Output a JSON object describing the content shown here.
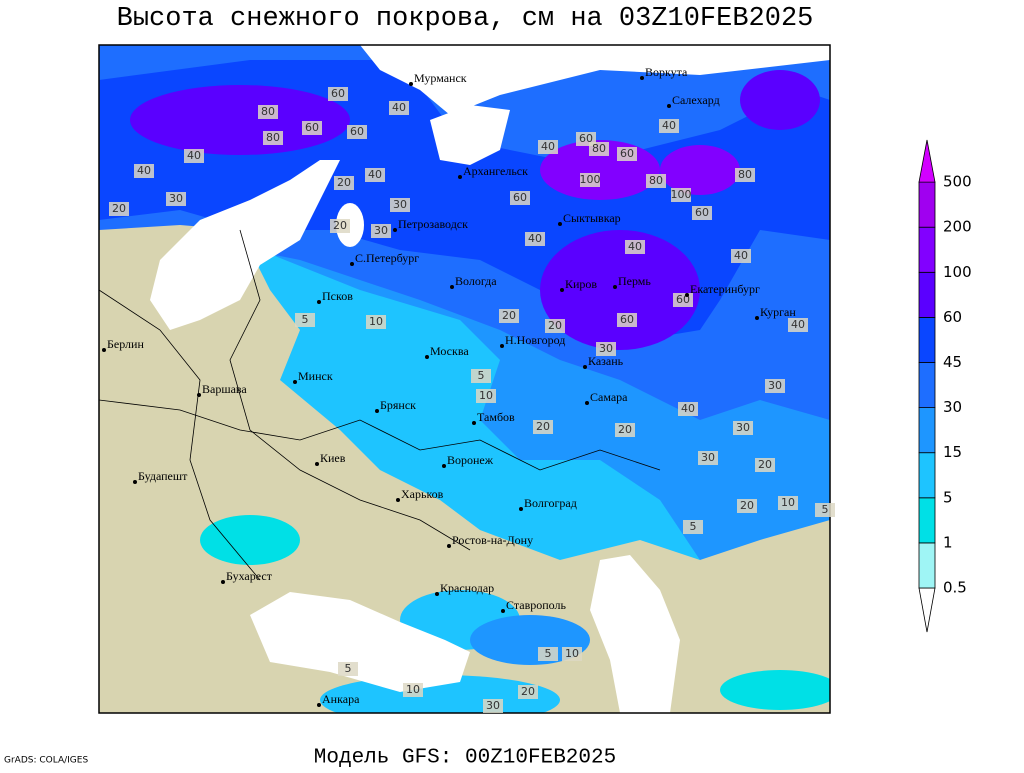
{
  "header": {
    "title": "Высота снежного покрова, см на 03Z10FEB2025"
  },
  "footer": {
    "model": "Модель GFS: 00Z10FEB2025",
    "credit": "GrADS: COLA/IGES"
  },
  "colorbar": {
    "levels": [
      0.5,
      1,
      5,
      15,
      30,
      45,
      60,
      100,
      200,
      500
    ],
    "colors": [
      "#ffffff",
      "#9ff5f5",
      "#00e0e6",
      "#1ec4ff",
      "#1e96ff",
      "#1e6eff",
      "#0a46ff",
      "#5a00ff",
      "#8200ff",
      "#a000f0",
      "#d200ff"
    ]
  },
  "map": {
    "cities": [
      "Мурманск",
      "Воркута",
      "Салехард",
      "Архангельск",
      "Сыктывкар",
      "Петрозаводск",
      "С.Петербург",
      "Вологда",
      "Киров",
      "Пермь",
      "Екатеринбург",
      "Курган",
      "Псков",
      "Н.Новгород",
      "Москва",
      "Казань",
      "Берлин",
      "Варшава",
      "Минск",
      "Брянск",
      "Тамбов",
      "Самара",
      "Киев",
      "Воронеж",
      "Харьков",
      "Волгоград",
      "Будапешт",
      "Бухарест",
      "Ростов-на-Дону",
      "Краснодар",
      "Ставрополь",
      "Анкара"
    ],
    "contour_labels": [
      80,
      60,
      40,
      80,
      60,
      60,
      40,
      40,
      20,
      40,
      30,
      20,
      30,
      20,
      30,
      40,
      60,
      80,
      60,
      100,
      60,
      80,
      100,
      40,
      80,
      60,
      40,
      40,
      40,
      60,
      40,
      20,
      20,
      60,
      30,
      10,
      5,
      5,
      10,
      20,
      20,
      30,
      40,
      30,
      30,
      20,
      20,
      10,
      5,
      5,
      5,
      10,
      30,
      20,
      10,
      5
    ]
  }
}
